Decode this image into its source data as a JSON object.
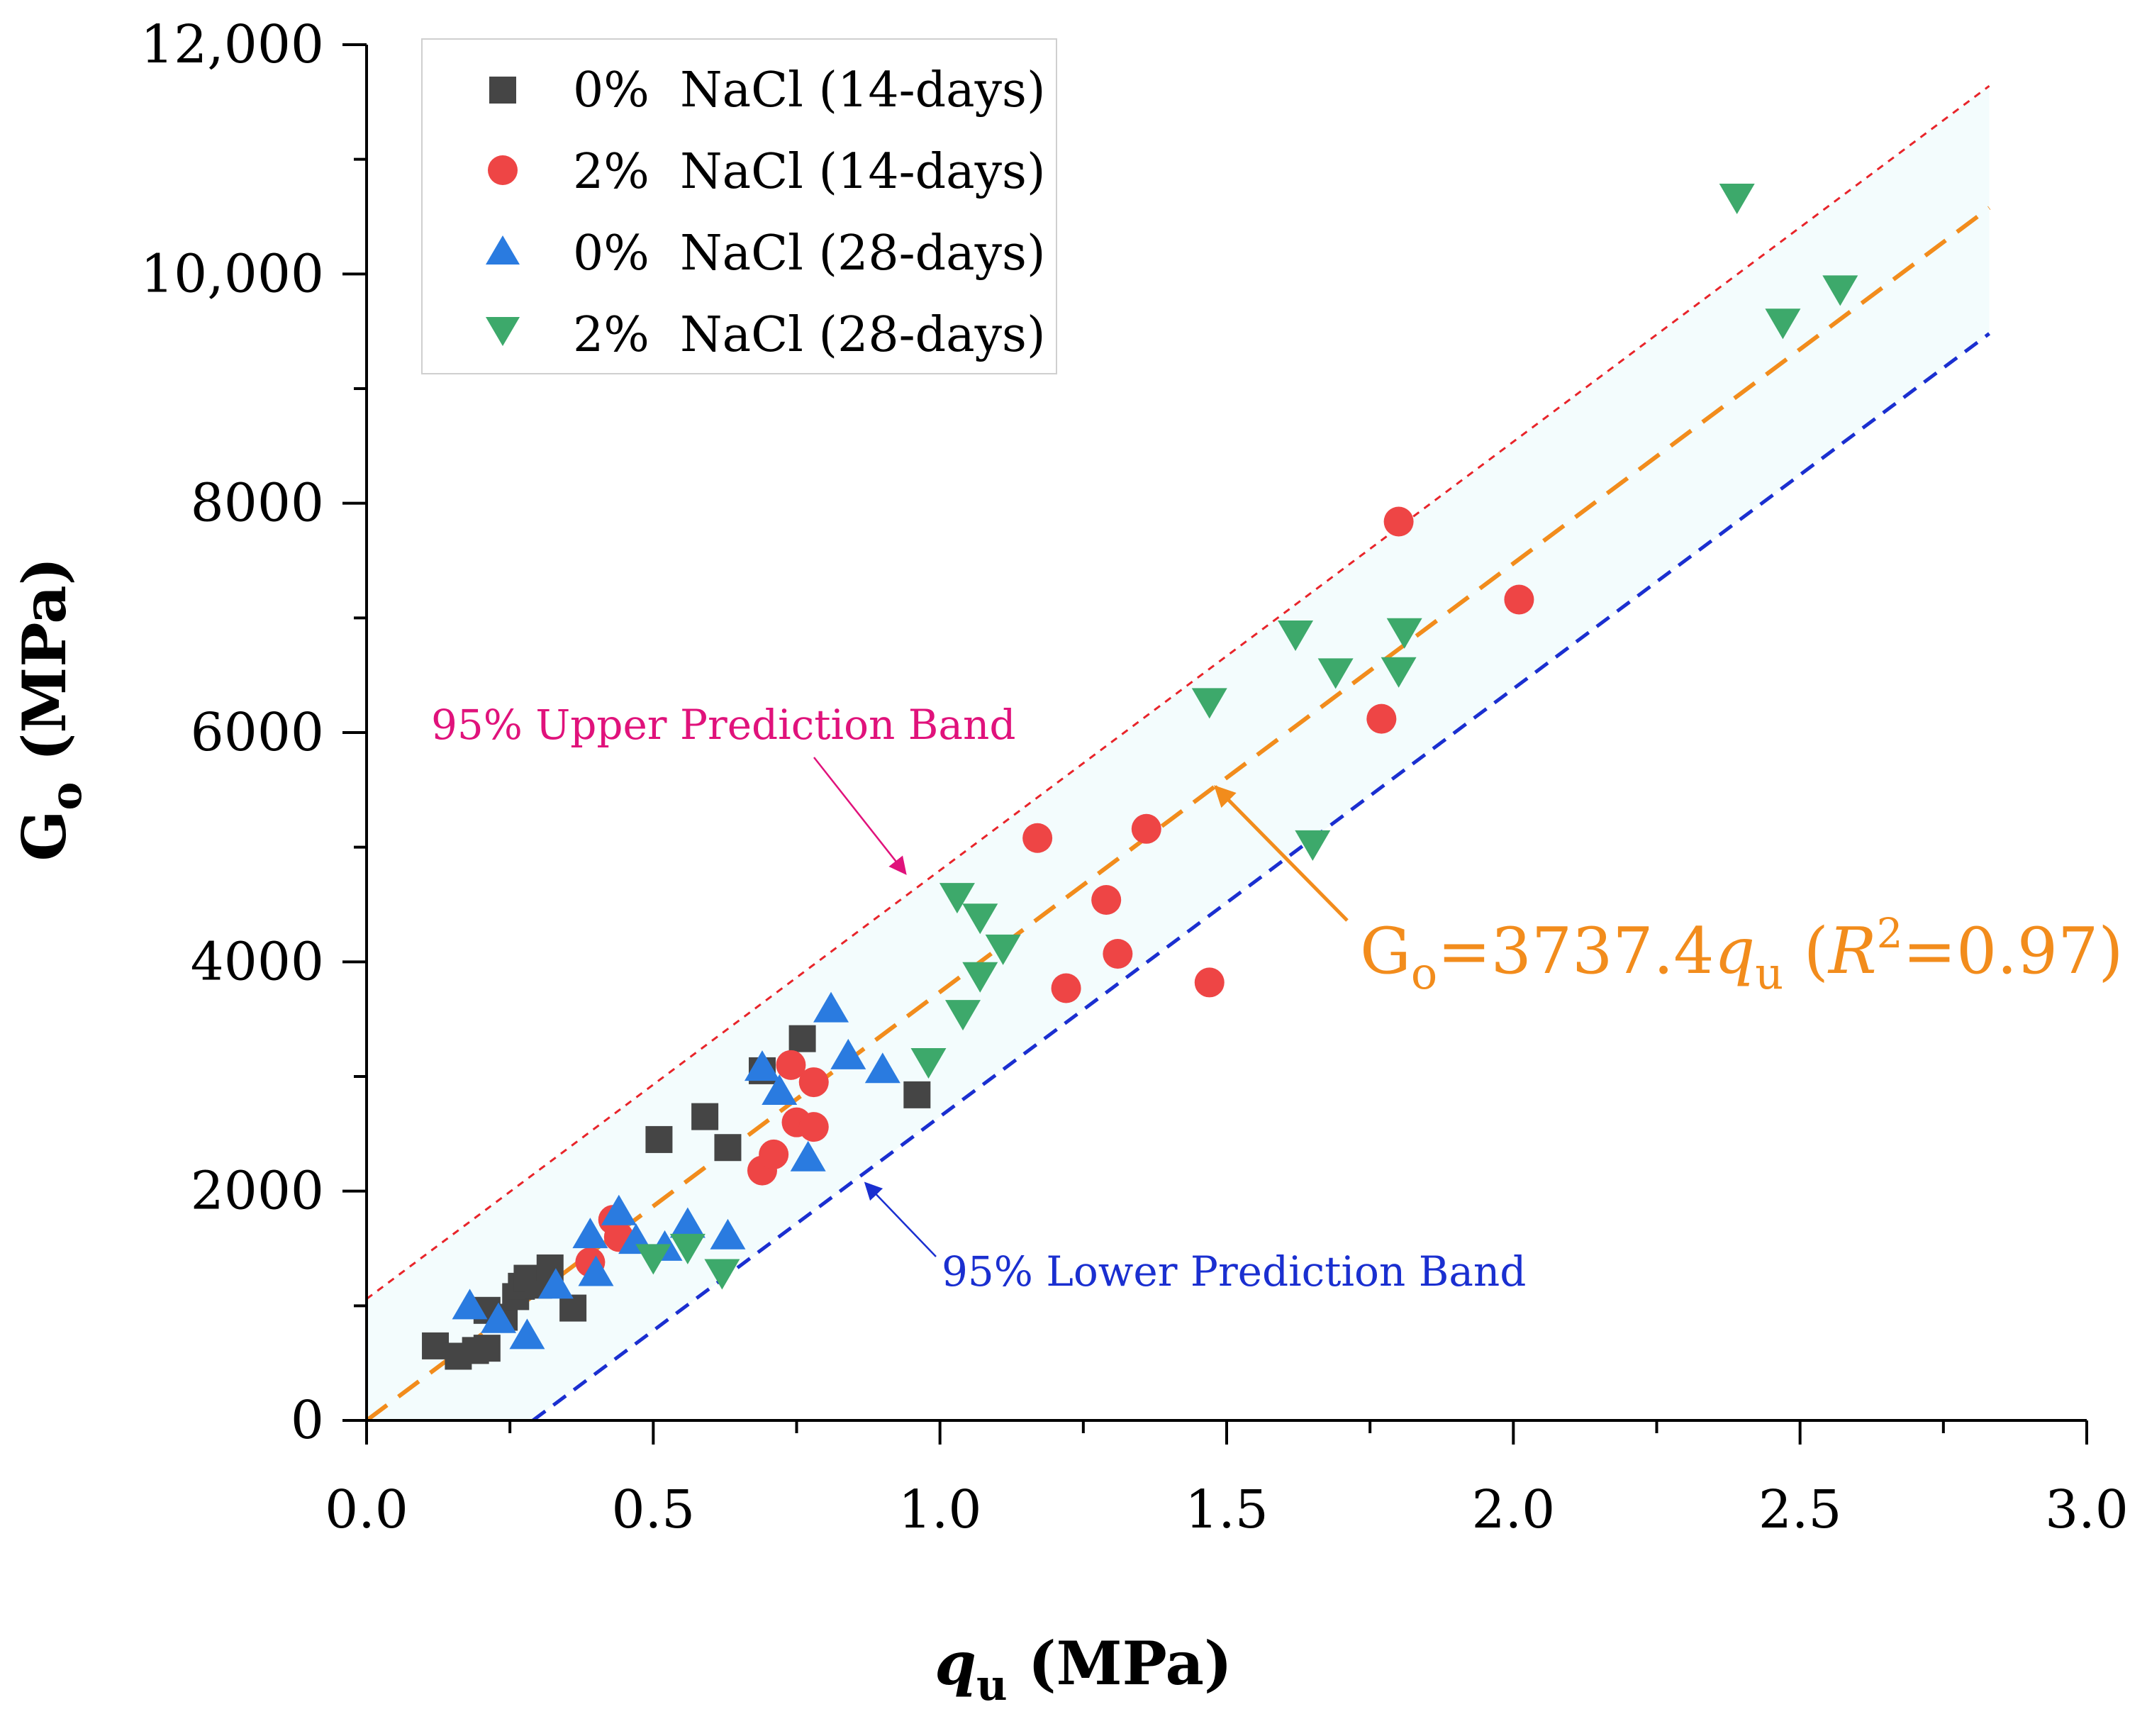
{
  "chart_data": {
    "type": "scatter",
    "xlabel": "q",
    "xlabel_sub": "u",
    "xlabel_unit": "(MPa)",
    "ylabel": "G",
    "ylabel_sub": "o",
    "ylabel_unit": "(MPa)",
    "xlim": [
      0.0,
      3.0
    ],
    "ylim": [
      0,
      12000
    ],
    "x_ticks": [
      0.0,
      0.5,
      1.0,
      1.5,
      2.0,
      2.5,
      3.0
    ],
    "x_tick_labels": [
      "0.0",
      "0.5",
      "1.0",
      "1.5",
      "2.0",
      "2.5",
      "3.0"
    ],
    "y_ticks": [
      0,
      2000,
      4000,
      6000,
      8000,
      10000,
      12000
    ],
    "y_tick_labels": [
      "0",
      "2000",
      "4000",
      "6000",
      "8000",
      "10,000",
      "12,000"
    ],
    "grid": false,
    "legend_position": "top-left",
    "series": [
      {
        "name": "0%  NaCl (14-days)",
        "marker": "square",
        "color": "#454545",
        "points": [
          [
            0.12,
            650
          ],
          [
            0.16,
            560
          ],
          [
            0.19,
            610
          ],
          [
            0.21,
            630
          ],
          [
            0.21,
            960
          ],
          [
            0.24,
            900
          ],
          [
            0.26,
            1080
          ],
          [
            0.27,
            1170
          ],
          [
            0.28,
            1240
          ],
          [
            0.3,
            1180
          ],
          [
            0.32,
            1330
          ],
          [
            0.36,
            980
          ],
          [
            0.51,
            2450
          ],
          [
            0.59,
            2650
          ],
          [
            0.63,
            2380
          ],
          [
            0.69,
            3050
          ],
          [
            0.76,
            3330
          ],
          [
            0.96,
            2840
          ]
        ]
      },
      {
        "name": "2%  NaCl (14-days)",
        "marker": "circle",
        "color": "#EE4545",
        "points": [
          [
            0.39,
            1380
          ],
          [
            0.43,
            1750
          ],
          [
            0.44,
            1600
          ],
          [
            0.69,
            2180
          ],
          [
            0.71,
            2320
          ],
          [
            0.74,
            3100
          ],
          [
            0.75,
            2600
          ],
          [
            0.78,
            2950
          ],
          [
            0.78,
            2560
          ],
          [
            1.17,
            5080
          ],
          [
            1.22,
            3770
          ],
          [
            1.29,
            4540
          ],
          [
            1.31,
            4070
          ],
          [
            1.36,
            5160
          ],
          [
            1.47,
            3820
          ],
          [
            1.77,
            6120
          ],
          [
            1.8,
            7840
          ],
          [
            2.01,
            7160
          ]
        ]
      },
      {
        "name": "0%  NaCl (28-days)",
        "marker": "triangle-up",
        "color": "#2A7BE0",
        "points": [
          [
            0.18,
            1000
          ],
          [
            0.23,
            880
          ],
          [
            0.28,
            740
          ],
          [
            0.33,
            1180
          ],
          [
            0.39,
            1620
          ],
          [
            0.4,
            1290
          ],
          [
            0.44,
            1820
          ],
          [
            0.47,
            1570
          ],
          [
            0.52,
            1510
          ],
          [
            0.56,
            1710
          ],
          [
            0.63,
            1610
          ],
          [
            0.69,
            3080
          ],
          [
            0.72,
            2870
          ],
          [
            0.77,
            2290
          ],
          [
            0.81,
            3590
          ],
          [
            0.84,
            3180
          ],
          [
            0.9,
            3060
          ]
        ]
      },
      {
        "name": "2%  NaCl (28-days)",
        "marker": "triangle-down",
        "color": "#3DA96B",
        "points": [
          [
            0.5,
            1420
          ],
          [
            0.56,
            1510
          ],
          [
            0.62,
            1290
          ],
          [
            0.98,
            3130
          ],
          [
            1.03,
            4570
          ],
          [
            1.04,
            3550
          ],
          [
            1.07,
            3880
          ],
          [
            1.07,
            4390
          ],
          [
            1.11,
            4120
          ],
          [
            1.47,
            6270
          ],
          [
            1.62,
            6860
          ],
          [
            1.65,
            5030
          ],
          [
            1.69,
            6530
          ],
          [
            1.8,
            6540
          ],
          [
            1.81,
            6880
          ],
          [
            2.39,
            10670
          ],
          [
            2.47,
            9580
          ],
          [
            2.57,
            9870
          ]
        ]
      }
    ],
    "fit": {
      "slope": 3737.4,
      "x_range": [
        0.0,
        2.83
      ],
      "color": "#F28C1C",
      "label_parts": [
        "G",
        "o",
        "=3737.4",
        "q",
        "u",
        " (",
        "R",
        "2",
        "=0.97)"
      ]
    },
    "upper_band": {
      "x_range": [
        0.0,
        2.83
      ],
      "y_start": 1060,
      "y_end": 11640,
      "color": "#E8242A",
      "label": "95% Upper Prediction Band",
      "label_color": "#E0127B"
    },
    "lower_band": {
      "x_range": [
        0.29,
        2.83
      ],
      "y_start": 0,
      "y_end": 9480,
      "color": "#1A2FD0",
      "label": "95% Lower Prediction Band",
      "label_color": "#1A2FD0"
    },
    "band_fill_color": "#F3FCFD",
    "annotation_arrows": [
      {
        "target": [
          0.94,
          4770
        ],
        "color": "#E0127B"
      },
      {
        "target": [
          0.87,
          2070
        ],
        "color": "#1A2FD0"
      },
      {
        "target": [
          1.48,
          5530
        ],
        "color": "#F28C1C"
      }
    ]
  }
}
